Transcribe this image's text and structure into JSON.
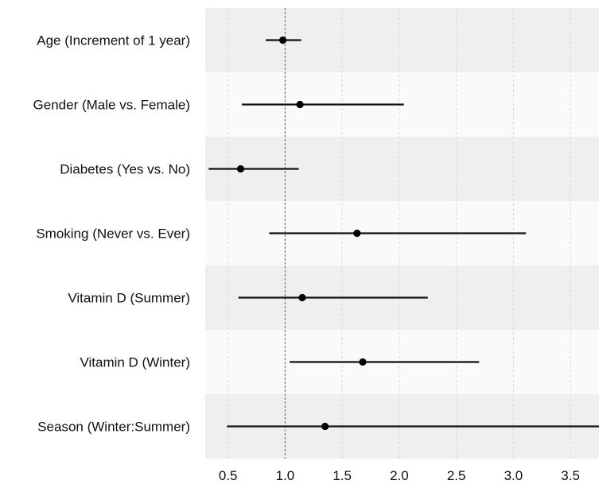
{
  "chart_data": {
    "type": "forest",
    "title": "",
    "xlabel": "",
    "ylabel": "",
    "xlim": [
      0.3,
      3.75
    ],
    "x_ticks": [
      0.5,
      1.0,
      1.5,
      2.0,
      2.5,
      3.0,
      3.5
    ],
    "x_tick_labels": [
      "0.5",
      "1.0",
      "1.5",
      "2.0",
      "2.5",
      "3.0",
      "3.5"
    ],
    "reference_line": 1.0,
    "grid": true,
    "rows": [
      {
        "label": "Age (Increment of 1 year)",
        "estimate": 0.98,
        "lower": 0.83,
        "upper": 1.14
      },
      {
        "label": "Gender (Male vs. Female)",
        "estimate": 1.13,
        "lower": 0.62,
        "upper": 2.04
      },
      {
        "label": "Diabetes (Yes vs. No)",
        "estimate": 0.61,
        "lower": 0.33,
        "upper": 1.12
      },
      {
        "label": "Smoking (Never vs. Ever)",
        "estimate": 1.63,
        "lower": 0.86,
        "upper": 3.11
      },
      {
        "label": "Vitamin D (Summer)",
        "estimate": 1.15,
        "lower": 0.59,
        "upper": 2.25
      },
      {
        "label": "Vitamin D (Winter)",
        "estimate": 1.68,
        "lower": 1.04,
        "upper": 2.7
      },
      {
        "label": "Season (Winter:Summer)",
        "estimate": 1.35,
        "lower": 0.49,
        "upper": 3.75
      }
    ],
    "colors": {
      "band_dark": "#efefef",
      "band_light": "#fafafa",
      "marker": "#000000",
      "interval": "#111111",
      "grid": "#d6d6d6",
      "reference": "#8a8a8a"
    }
  }
}
